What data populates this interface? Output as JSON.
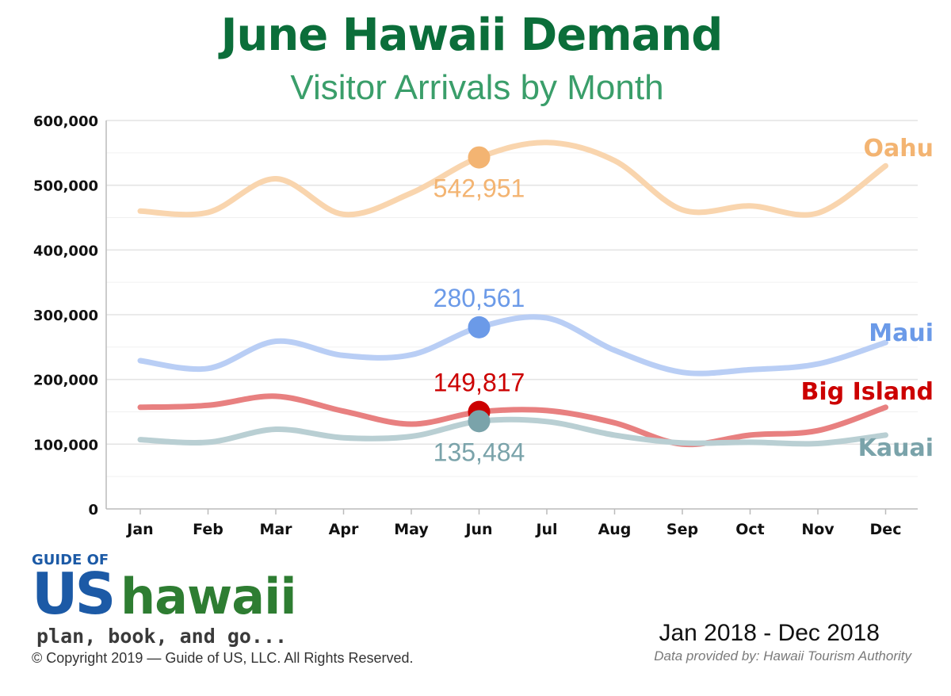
{
  "header": {
    "title": "June Hawaii Demand",
    "subtitle": "Visitor Arrivals by Month"
  },
  "colors": {
    "title": "#0b6e3a",
    "subtitle": "#3a9e6a",
    "grid": "#e4e4e4",
    "axis": "#bbbbbb"
  },
  "chart_data": {
    "type": "line",
    "title": "June Hawaii Demand",
    "subtitle": "Visitor Arrivals by Month",
    "categories": [
      "Jan",
      "Feb",
      "Mar",
      "Apr",
      "May",
      "Jun",
      "Jul",
      "Aug",
      "Sep",
      "Oct",
      "Nov",
      "Dec"
    ],
    "y_ticks": [
      {
        "value": 0,
        "label": "0"
      },
      {
        "value": 100000,
        "label": "100,000"
      },
      {
        "value": 200000,
        "label": "200,000"
      },
      {
        "value": 300000,
        "label": "300,000"
      },
      {
        "value": 400000,
        "label": "400,000"
      },
      {
        "value": 500000,
        "label": "500,000"
      },
      {
        "value": 600000,
        "label": "600,000"
      }
    ],
    "ylim": [
      0,
      600000
    ],
    "grid": true,
    "legend": "series names labeled at right end of each line",
    "highlight_index": 5,
    "series": [
      {
        "name": "Oahu",
        "line_color": "#f9d5ae",
        "accent_color": "#f3b472",
        "values": [
          460000,
          458000,
          510000,
          455000,
          488000,
          542951,
          566000,
          538000,
          462000,
          468000,
          457000,
          530000
        ],
        "highlight_label": "542,951",
        "highlight_label_position": "below"
      },
      {
        "name": "Maui",
        "line_color": "#b9cef5",
        "accent_color": "#6b9ae8",
        "values": [
          229000,
          217000,
          259000,
          237000,
          238000,
          280561,
          295000,
          245000,
          211000,
          215000,
          224000,
          257000
        ],
        "highlight_label": "280,561",
        "highlight_label_position": "above"
      },
      {
        "name": "Big Island",
        "line_color": "#e88080",
        "accent_color": "#cc0000",
        "values": [
          157000,
          160000,
          174000,
          151000,
          131000,
          149817,
          152000,
          133000,
          100000,
          114000,
          121000,
          157000
        ],
        "highlight_label": "149,817",
        "highlight_label_position": "above"
      },
      {
        "name": "Kauai",
        "line_color": "#b9cfd3",
        "accent_color": "#7aa3aa",
        "values": [
          107000,
          103000,
          123000,
          110000,
          112000,
          135484,
          135000,
          114000,
          102000,
          103000,
          101000,
          114000
        ],
        "highlight_label": "135,484",
        "highlight_label_position": "below"
      }
    ]
  },
  "logo": {
    "top_text": "GUIDE OF",
    "brand_us": "US",
    "brand_hawaii": "hawaii",
    "tagline": "plan, book, and go..."
  },
  "footer": {
    "copyright": "© Copyright 2019 — Guide of US, LLC. All Rights Reserved.",
    "period": "Jan 2018 - Dec 2018",
    "source": "Data provided by: Hawaii Tourism Authority"
  }
}
